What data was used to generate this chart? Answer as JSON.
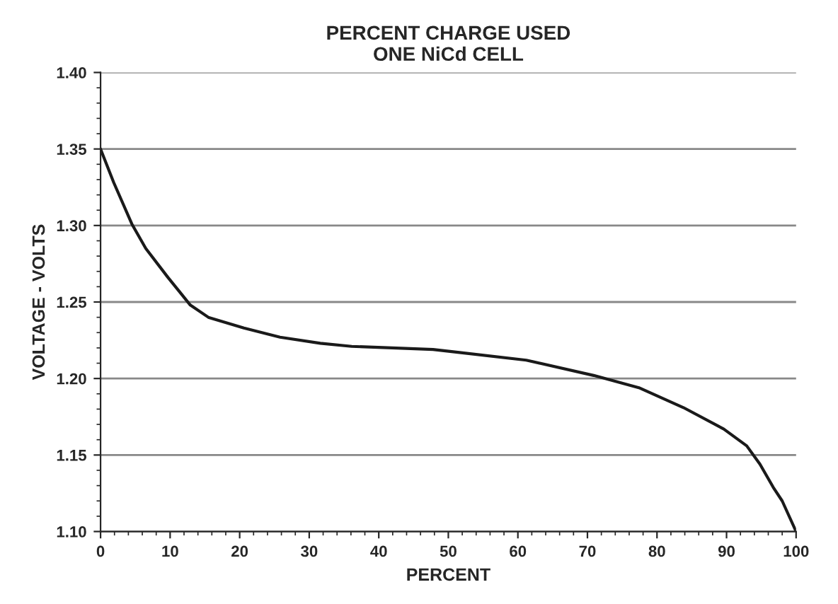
{
  "chart_data": {
    "type": "line",
    "title": "PERCENT CHARGE USED\nONE NiCd CELL",
    "xlabel": "PERCENT",
    "ylabel": "VOLTAGE - VOLTS",
    "series": [
      {
        "color": "#1a1a1a",
        "x": [
          0,
          1.9,
          4.5,
          6.5,
          9.7,
          12.9,
          15.5,
          20.6,
          25.8,
          31.6,
          36.1,
          41.9,
          47.8,
          51.6,
          61.2,
          70.9,
          77.4,
          83.8,
          89.6,
          92.9,
          94.8,
          96.7,
          98.0,
          100
        ],
        "values": [
          1.35,
          1.328,
          1.301,
          1.285,
          1.266,
          1.248,
          1.24,
          1.233,
          1.227,
          1.223,
          1.221,
          1.22,
          1.219,
          1.217,
          1.212,
          1.202,
          1.194,
          1.181,
          1.167,
          1.156,
          1.144,
          1.129,
          1.12,
          1.1
        ]
      }
    ],
    "xlim": [
      0,
      100
    ],
    "xticks": [
      0,
      10,
      20,
      30,
      40,
      50,
      60,
      70,
      80,
      90,
      100
    ],
    "ylim": [
      1.1,
      1.4
    ],
    "yticks": [
      {
        "value": 1.1,
        "label": "1.10"
      },
      {
        "value": 1.15,
        "label": "1.15"
      },
      {
        "value": 1.2,
        "label": "1.20"
      },
      {
        "value": 1.25,
        "label": "1.25"
      },
      {
        "value": 1.3,
        "label": "1.30"
      },
      {
        "value": 1.35,
        "label": "1.35"
      },
      {
        "value": 1.4,
        "label": "1.40"
      }
    ],
    "grid": "y",
    "marker": "none",
    "line_style": "solid"
  }
}
